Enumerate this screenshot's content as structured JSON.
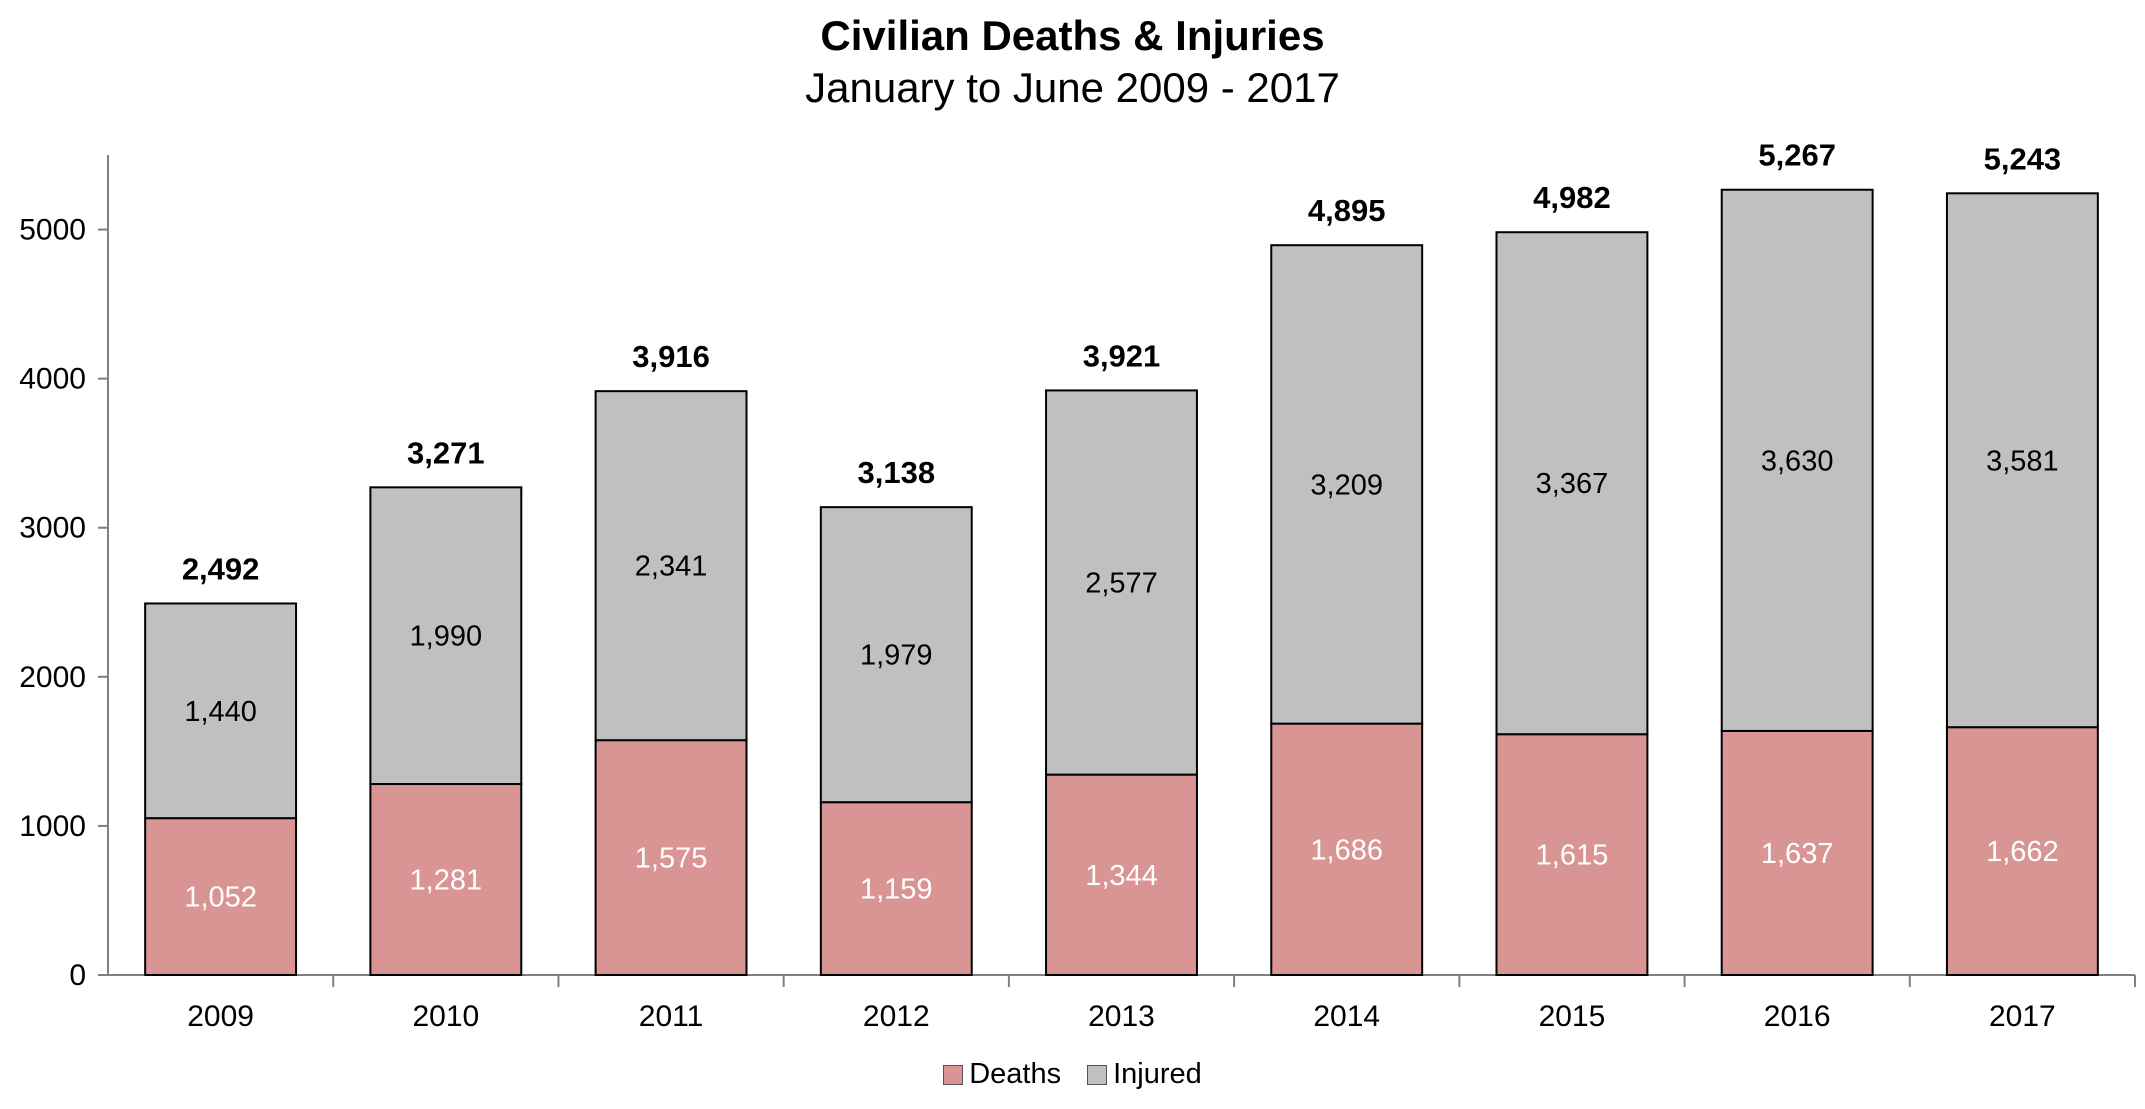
{
  "chart_data": {
    "type": "bar",
    "stacked": true,
    "title": "Civilian Deaths & Injuries",
    "subtitle": "January to June 2009 - 2017",
    "categories": [
      "2009",
      "2010",
      "2011",
      "2012",
      "2013",
      "2014",
      "2015",
      "2016",
      "2017"
    ],
    "series": [
      {
        "name": "Deaths",
        "color": "#d99594",
        "label_color": "#ffffff",
        "values": [
          1052,
          1281,
          1575,
          1159,
          1344,
          1686,
          1615,
          1637,
          1662
        ],
        "labels": [
          "1,052",
          "1,281",
          "1,575",
          "1,159",
          "1,344",
          "1,686",
          "1,615",
          "1,637",
          "1,662"
        ]
      },
      {
        "name": "Injured",
        "color": "#c0c0c0",
        "label_color": "#000000",
        "values": [
          1440,
          1990,
          2341,
          1979,
          2577,
          3209,
          3367,
          3630,
          3581
        ],
        "labels": [
          "1,440",
          "1,990",
          "2,341",
          "1,979",
          "2,577",
          "3,209",
          "3,367",
          "3,630",
          "3,581"
        ]
      }
    ],
    "totals": [
      2492,
      3271,
      3916,
      3138,
      3921,
      4895,
      4982,
      5267,
      5243
    ],
    "total_labels": [
      "2,492",
      "3,271",
      "3,916",
      "3,138",
      "3,921",
      "4,895",
      "4,982",
      "5,267",
      "5,243"
    ],
    "y_ticks": [
      "0",
      "1000",
      "2000",
      "3000",
      "4000",
      "5000"
    ],
    "ylim": [
      0,
      5500
    ],
    "grid": false,
    "legend_position": "bottom"
  }
}
